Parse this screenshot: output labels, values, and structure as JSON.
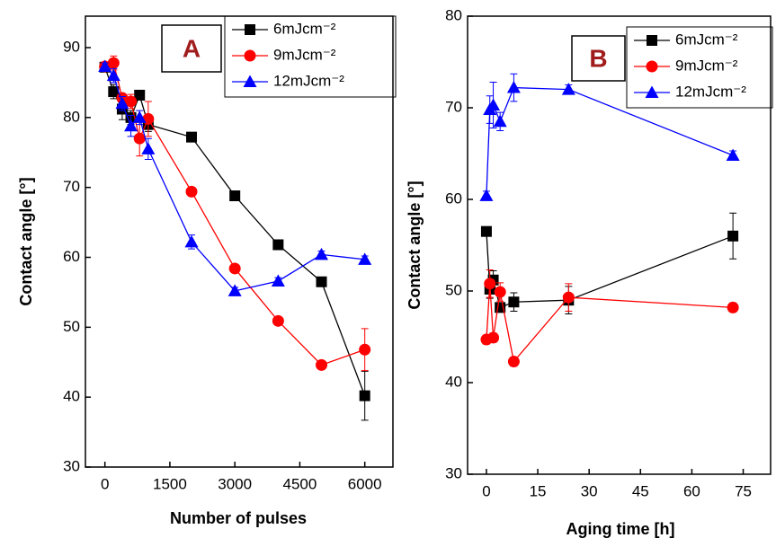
{
  "chart_data": [
    {
      "type": "line",
      "annotation": "A",
      "x_label": "Number of pulses",
      "y_label": "Contact angle [°]",
      "xlim": [
        -450,
        6650
      ],
      "xticks": [
        0,
        1500,
        3000,
        4500,
        6000
      ],
      "ylim": [
        30,
        94.5
      ],
      "yticks": [
        30,
        40,
        50,
        60,
        70,
        80,
        90
      ],
      "x": [
        0,
        200,
        400,
        600,
        800,
        1000,
        2000,
        3000,
        4000,
        5000,
        6000
      ],
      "series": [
        {
          "name": "6mJcm⁻²",
          "color": "#000000",
          "marker": "square",
          "values": [
            87.2,
            83.7,
            81.2,
            80,
            83.2,
            79,
            77.2,
            68.8,
            61.8,
            56.5,
            40.2
          ],
          "errors": [
            0.5,
            1,
            1.5,
            1,
            0.5,
            1,
            0.5,
            0.5,
            0.5,
            0.5,
            3.5
          ]
        },
        {
          "name": "9mJcm⁻²",
          "color": "#ff0000",
          "marker": "circle",
          "values": [
            87.3,
            87.8,
            82.8,
            82.3,
            77,
            79.8,
            69.4,
            58.4,
            50.9,
            44.6,
            46.8
          ],
          "errors": [
            0.5,
            1,
            0.5,
            1,
            2.5,
            2.5,
            0.5,
            0.5,
            0.5,
            0.5,
            3
          ]
        },
        {
          "name": "12mJcm⁻²",
          "color": "#0000ff",
          "marker": "triangle",
          "values": [
            87.3,
            86,
            82,
            78.8,
            80,
            75.5,
            62.2,
            55.2,
            56.6,
            60.4,
            59.7
          ],
          "errors": [
            0.5,
            1,
            1,
            1.5,
            1,
            1.5,
            1,
            0.5,
            0.5,
            0.5,
            0.5
          ]
        }
      ]
    },
    {
      "type": "line",
      "annotation": "B",
      "x_label": "Aging time [h]",
      "y_label": "Contact angle [°]",
      "xlim": [
        -5.5,
        83
      ],
      "xticks": [
        0,
        15,
        30,
        45,
        60,
        75
      ],
      "ylim": [
        30,
        80
      ],
      "yticks": [
        30,
        40,
        50,
        60,
        70,
        80
      ],
      "x": [
        0,
        1,
        2,
        4,
        8,
        24,
        72
      ],
      "series": [
        {
          "name": "6mJcm⁻²",
          "color": "#000000",
          "marker": "square",
          "values": [
            56.5,
            50.2,
            51.2,
            48.2,
            48.8,
            49,
            56
          ],
          "errors": [
            0.5,
            1,
            1,
            0.5,
            1,
            1.5,
            2.5
          ]
        },
        {
          "name": "9mJcm⁻²",
          "color": "#ff0000",
          "marker": "circle",
          "values": [
            44.7,
            50.8,
            44.9,
            49.9,
            42.3,
            49.3,
            48.2
          ],
          "errors": [
            0.5,
            1.5,
            0.5,
            1,
            0.5,
            1.5,
            0.5
          ]
        },
        {
          "name": "12mJcm⁻²",
          "color": "#0000ff",
          "marker": "triangle",
          "values": [
            60.4,
            69.8,
            70.3,
            68.5,
            72.2,
            72,
            64.8
          ],
          "errors": [
            0.5,
            1.5,
            2.5,
            1,
            1.5,
            0.5,
            0.5
          ]
        }
      ]
    }
  ]
}
